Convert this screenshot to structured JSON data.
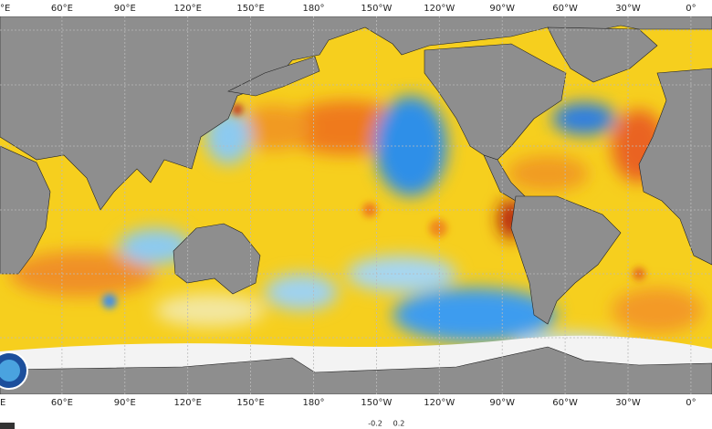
{
  "map": {
    "top_labels": [
      "°E",
      "60°E",
      "90°E",
      "120°E",
      "150°E",
      "180°",
      "150°W",
      "120°W",
      "90°W",
      "60°W",
      "30°W",
      "0°"
    ],
    "bottom_labels": [
      "E",
      "60°E",
      "90°E",
      "120°E",
      "150°E",
      "180°",
      "150°W",
      "120°W",
      "90°W",
      "60°W",
      "30°W",
      "0°"
    ],
    "colorbar_labels": [
      "-0.2",
      "0.2"
    ]
  }
}
